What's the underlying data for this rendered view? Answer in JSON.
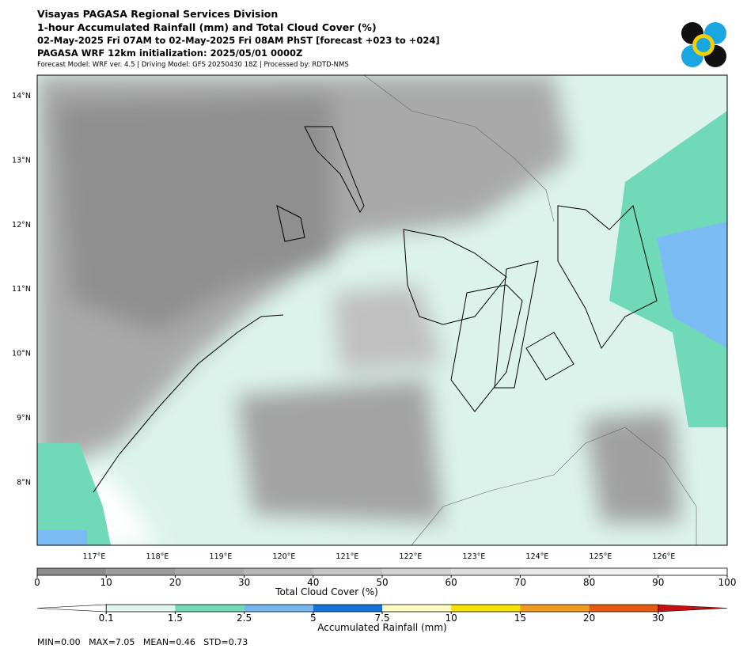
{
  "header": {
    "lines": [
      "Visayas PAGASA Regional Services Division",
      "1-hour Accumulated Rainfall (mm) and Total Cloud Cover (%)",
      "02-May-2025 Fri 07AM to 02-May-2025 Fri 08AM PhST [forecast +023 to +024]",
      "PAGASA WRF 12km initialization: 2025/05/01 0000Z",
      "Forecast Model: WRF ver. 4.5 | Driving Model: GFS 20250430 18Z | Processed by: RDTD-NMS"
    ]
  },
  "map": {
    "lat_labels": [
      "14°N",
      "13°N",
      "12°N",
      "11°N",
      "10°N",
      "9°N",
      "8°N"
    ],
    "lon_labels": [
      "117°E",
      "118°E",
      "119°E",
      "120°E",
      "121°E",
      "122°E",
      "123°E",
      "124°E",
      "125°E",
      "126°E"
    ]
  },
  "cloud_colorbar": {
    "label": "Total Cloud Cover (%)",
    "ticks": [
      0,
      10,
      20,
      30,
      40,
      50,
      60,
      70,
      80,
      90,
      100
    ],
    "colors": [
      "#8c8c8c",
      "#9b9b9b",
      "#a9a9a9",
      "#b7b7b7",
      "#c5c5c5",
      "#d2d2d2",
      "#dedede",
      "#e8e8e8",
      "#f2f2f2",
      "#ffffff"
    ]
  },
  "rain_colorbar": {
    "label": "Accumulated Rainfall (mm)",
    "ticks": [
      0.1,
      1.5,
      2.5,
      5,
      7.5,
      10,
      15,
      20,
      30
    ],
    "colors": [
      "#dff5ee",
      "#6fd9b8",
      "#76b8ee",
      "#1472d8",
      "#fffdc0",
      "#f5e000",
      "#f09a20",
      "#e85a10"
    ],
    "under_color": "#ffffff",
    "over_color": "#c81010"
  },
  "footer": {
    "stats": "MIN=0.00   MAX=7.05   MEAN=0.46   STD=0.73"
  }
}
